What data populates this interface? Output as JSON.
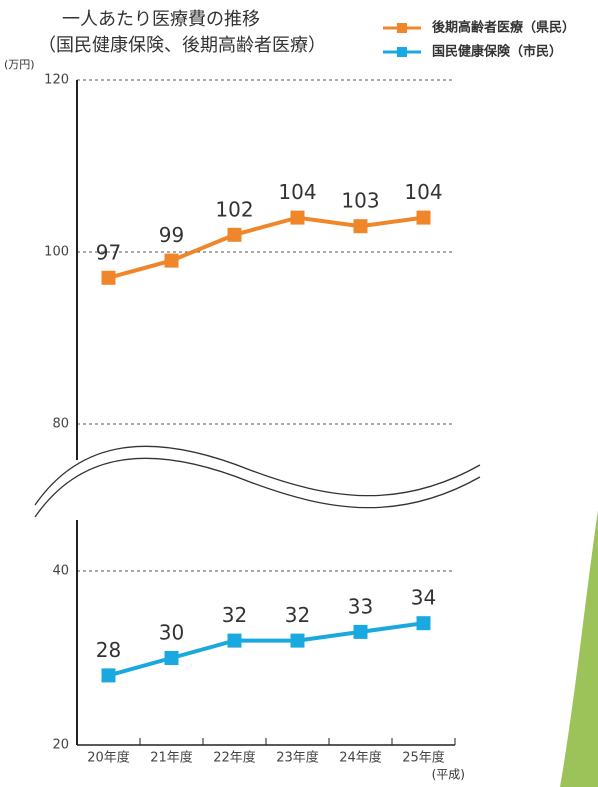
{
  "chart_data": {
    "type": "line",
    "title": "一人あたり医療費の推移",
    "subtitle": "（国民健康保険、後期高齢者医療）",
    "y_label": "(万円)",
    "x_label": "(平成)",
    "categories": [
      "20年度",
      "21年度",
      "22年度",
      "23年度",
      "24年度",
      "25年度"
    ],
    "series": [
      {
        "name": "後期高齢者医療（県民）",
        "color": "#f0862a",
        "values": [
          97,
          99,
          102,
          104,
          103,
          104
        ]
      },
      {
        "name": "国民健康保険（市民）",
        "color": "#1aa8e0",
        "values": [
          28,
          30,
          32,
          32,
          33,
          34
        ]
      }
    ],
    "ylim": [
      20,
      120
    ],
    "yticks": [
      20,
      40,
      80,
      100,
      120
    ],
    "axis_break": [
      40,
      80
    ],
    "grid": true
  }
}
